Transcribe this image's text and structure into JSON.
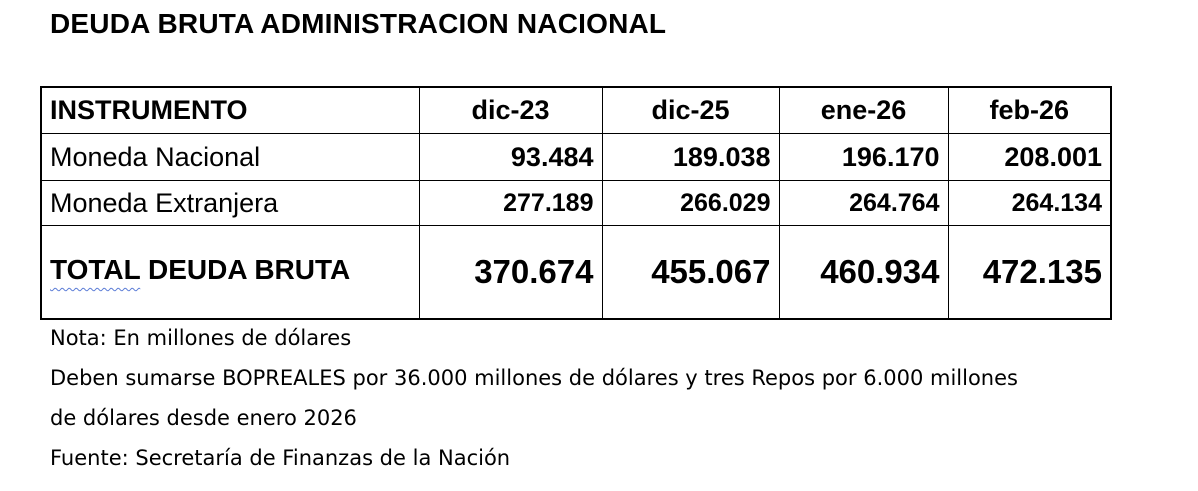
{
  "title": "DEUDA BRUTA ADMINISTRACION NACIONAL",
  "table": {
    "header": {
      "instrument": "INSTRUMENTO",
      "periods": [
        "dic-23",
        "dic-25",
        "ene-26",
        "feb-26"
      ]
    },
    "rows": [
      {
        "label": "Moneda Nacional",
        "values": [
          "93.484",
          "189.038",
          "196.170",
          "208.001"
        ]
      },
      {
        "label": "Moneda Extranjera",
        "values": [
          "277.189",
          "266.029",
          "264.764",
          "264.134"
        ]
      }
    ],
    "total": {
      "label_part1": "TOTAL",
      "label_part2": " DEUDA BRUTA",
      "values": [
        "370.674",
        "455.067",
        "460.934",
        "472.135"
      ]
    }
  },
  "notes": {
    "note": "Nota: En millones de dólares",
    "addendum_line1": "Deben sumarse BOPREALES por 36.000 millones de dólares y tres Repos por 6.000 millones",
    "addendum_line2": "de dólares desde enero 2026",
    "source": "Fuente:  Secretaría de Finanzas de la Nación"
  }
}
